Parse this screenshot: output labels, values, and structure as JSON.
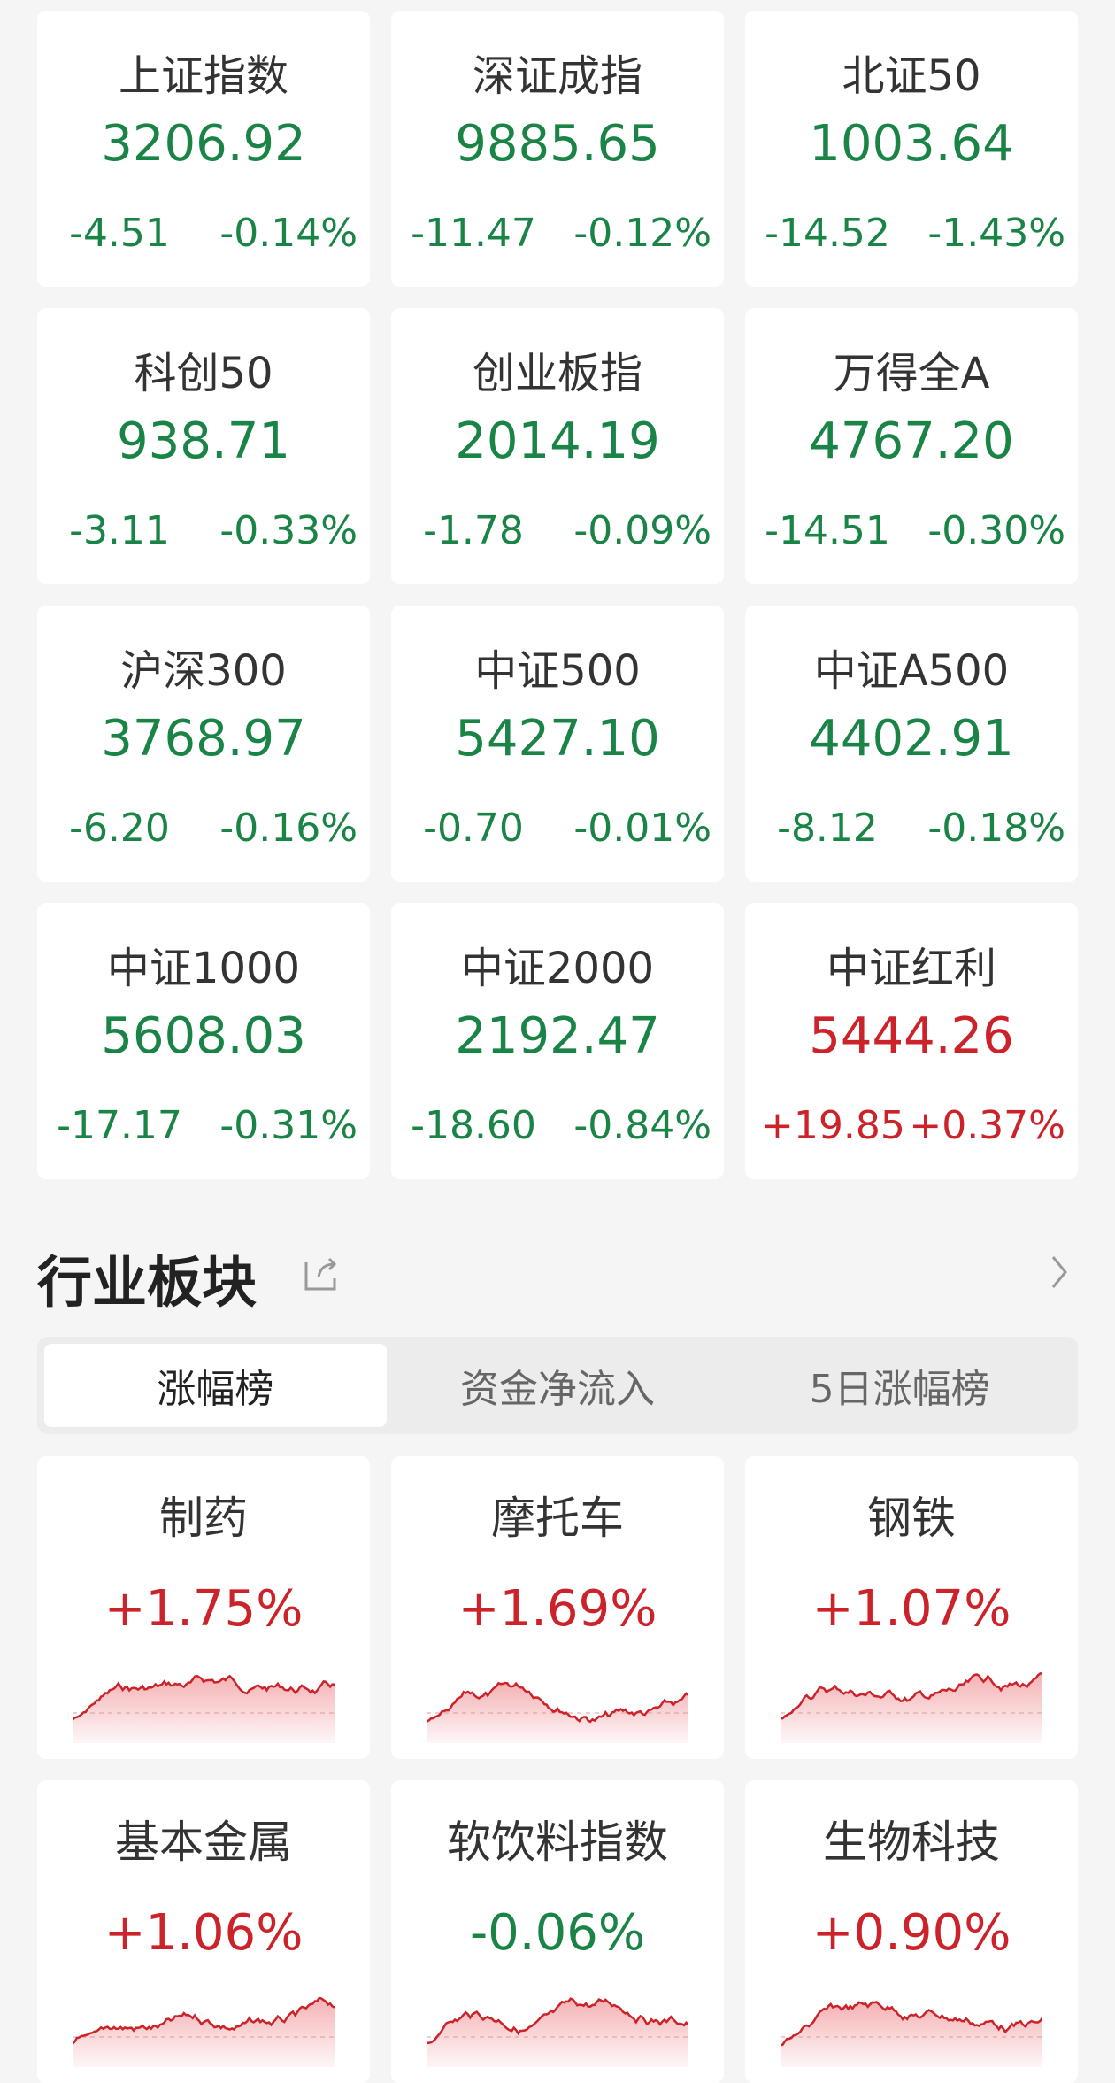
{
  "indices": [
    {
      "name": "上证指数",
      "value": "3206.92",
      "change": "-4.51",
      "pct": "-0.14%",
      "dir": "down"
    },
    {
      "name": "深证成指",
      "value": "9885.65",
      "change": "-11.47",
      "pct": "-0.12%",
      "dir": "down"
    },
    {
      "name": "北证50",
      "value": "1003.64",
      "change": "-14.52",
      "pct": "-1.43%",
      "dir": "down"
    },
    {
      "name": "科创50",
      "value": "938.71",
      "change": "-3.11",
      "pct": "-0.33%",
      "dir": "down"
    },
    {
      "name": "创业板指",
      "value": "2014.19",
      "change": "-1.78",
      "pct": "-0.09%",
      "dir": "down"
    },
    {
      "name": "万得全A",
      "value": "4767.20",
      "change": "-14.51",
      "pct": "-0.30%",
      "dir": "down"
    },
    {
      "name": "沪深300",
      "value": "3768.97",
      "change": "-6.20",
      "pct": "-0.16%",
      "dir": "down"
    },
    {
      "name": "中证500",
      "value": "5427.10",
      "change": "-0.70",
      "pct": "-0.01%",
      "dir": "down"
    },
    {
      "name": "中证A500",
      "value": "4402.91",
      "change": "-8.12",
      "pct": "-0.18%",
      "dir": "down"
    },
    {
      "name": "中证1000",
      "value": "5608.03",
      "change": "-17.17",
      "pct": "-0.31%",
      "dir": "down"
    },
    {
      "name": "中证2000",
      "value": "2192.47",
      "change": "-18.60",
      "pct": "-0.84%",
      "dir": "down"
    },
    {
      "name": "中证红利",
      "value": "5444.26",
      "change": "+19.85",
      "pct": "+0.37%",
      "dir": "up"
    }
  ],
  "section": {
    "title": "行业板块",
    "share_icon": "share-icon",
    "more_icon": "chevron-right-icon"
  },
  "tabs": [
    {
      "label": "涨幅榜",
      "active": true
    },
    {
      "label": "资金净流入",
      "active": false
    },
    {
      "label": "5日涨幅榜",
      "active": false
    }
  ],
  "sectors": [
    {
      "name": "制药",
      "pct": "+1.75%",
      "dir": "up"
    },
    {
      "name": "摩托车",
      "pct": "+1.69%",
      "dir": "up"
    },
    {
      "name": "钢铁",
      "pct": "+1.07%",
      "dir": "up"
    },
    {
      "name": "基本金属",
      "pct": "+1.06%",
      "dir": "up"
    },
    {
      "name": "软饮料指数",
      "pct": "-0.06%",
      "dir": "down"
    },
    {
      "name": "生物科技",
      "pct": "+0.90%",
      "dir": "up"
    }
  ],
  "colors": {
    "up": "#cc2229",
    "down": "#1a8447",
    "background": "#f5f5f5"
  }
}
